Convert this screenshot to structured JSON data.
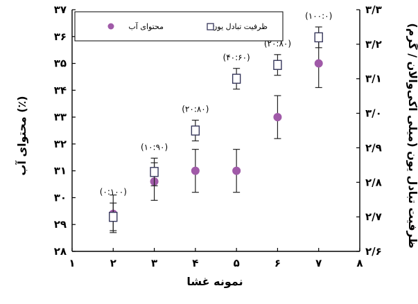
{
  "chart_data": {
    "type": "scatter",
    "xlabel": "نمونه غشا",
    "ylabel_left": "محتوای آب (٪)",
    "ylabel_right": "ظرفیت تبادل یون (میلی اکی‌والان / گرم)",
    "xlim": [
      1,
      8
    ],
    "ylim_left": [
      28,
      37
    ],
    "ylim_right": [
      2.6,
      3.3
    ],
    "x_ticks": [
      "۱",
      "۲",
      "۳",
      "۴",
      "۵",
      "۶",
      "۷",
      "۸"
    ],
    "y_left_ticks": [
      "۲۸",
      "۲۹",
      "۳۰",
      "۳۱",
      "۳۲",
      "۳۳",
      "۳۴",
      "۳۵",
      "۳۶",
      "۳۷"
    ],
    "y_right_ticks": [
      "۲/۶",
      "۲/۷",
      "۲/۸",
      "۲/۹",
      "۳/۰",
      "۳/۱",
      "۳/۲",
      "۳/۳"
    ],
    "series": [
      {
        "name": "محتوای آب",
        "axis": "left",
        "marker": "filled-circle",
        "color": "#a05aa8",
        "points": [
          {
            "x": 2,
            "y": 29.4,
            "err": 0.7
          },
          {
            "x": 3,
            "y": 30.6,
            "err": 0.7
          },
          {
            "x": 4,
            "y": 31.0,
            "err": 0.8
          },
          {
            "x": 5,
            "y": 31.0,
            "err": 0.8
          },
          {
            "x": 6,
            "y": 33.0,
            "err": 0.8
          },
          {
            "x": 7,
            "y": 35.0,
            "err": 0.9
          }
        ]
      },
      {
        "name": "ظرفیت تبادل یون",
        "axis": "right",
        "marker": "open-square",
        "color": "#35365a",
        "points": [
          {
            "x": 2,
            "y": 2.7,
            "err": 0.04
          },
          {
            "x": 3,
            "y": 2.83,
            "err": 0.04
          },
          {
            "x": 4,
            "y": 2.95,
            "err": 0.03
          },
          {
            "x": 5,
            "y": 3.1,
            "err": 0.03
          },
          {
            "x": 6,
            "y": 3.14,
            "err": 0.03
          },
          {
            "x": 7,
            "y": 3.22,
            "err": 0.03
          }
        ]
      }
    ],
    "annotations": [
      {
        "x": 2,
        "text": "(۰:۱۰۰)"
      },
      {
        "x": 3,
        "text": "(۱۰:۹۰)"
      },
      {
        "x": 4,
        "text": "(۲۰:۸۰)"
      },
      {
        "x": 5,
        "text": "(۴۰:۶۰)"
      },
      {
        "x": 6,
        "text": "(۲۰:۸۰)"
      },
      {
        "x": 7,
        "text": "(۱۰۰:۰)"
      }
    ],
    "legend": {
      "placement": "top-left",
      "items": [
        {
          "label": "ظرفیت تبادل یون",
          "marker": "open-square"
        },
        {
          "label": "محتوای آب",
          "marker": "filled-circle"
        }
      ]
    },
    "grid": false
  }
}
